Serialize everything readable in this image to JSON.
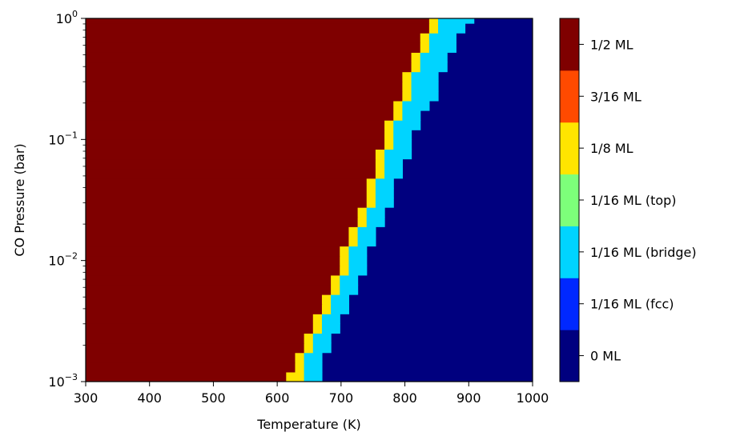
{
  "chart_data": {
    "type": "heatmap",
    "title": "",
    "xlabel": "Temperature (K)",
    "ylabel": "CO Pressure (bar)",
    "xlim": [
      300,
      1000
    ],
    "ylim": [
      0.001,
      1
    ],
    "yscale": "log",
    "x_cell_width_K": 14,
    "x_ticks": [
      "300",
      "400",
      "500",
      "600",
      "700",
      "800",
      "900",
      "1000"
    ],
    "y_ticks": [
      {
        "base": "10",
        "exp": "−3"
      },
      {
        "base": "10",
        "exp": "−2"
      },
      {
        "base": "10",
        "exp": "−1"
      },
      {
        "base": "10",
        "exp": "0"
      }
    ],
    "colorbar": {
      "placement": "right",
      "levels": [
        {
          "label": "0 ML",
          "color": "#00007f"
        },
        {
          "label": "1/16 ML (fcc)",
          "color": "#0028ff"
        },
        {
          "label": "1/16 ML (bridge)",
          "color": "#00d4ff"
        },
        {
          "label": "1/16 ML (top)",
          "color": "#7dff7a"
        },
        {
          "label": "1/8 ML",
          "color": "#ffe500"
        },
        {
          "label": "3/16 ML",
          "color": "#ff4a00"
        },
        {
          "label": "1/2 ML",
          "color": "#7f0000"
        }
      ]
    },
    "phase_rows": {
      "pressure_log10_edges": [
        -3.0,
        -2.92,
        -2.84,
        -2.76,
        -2.68,
        -2.6,
        -2.52,
        -2.44,
        -2.36,
        -2.28,
        -2.2,
        -2.12,
        -2.04,
        -1.96,
        -1.88,
        -1.8,
        -1.72,
        -1.64,
        -1.56,
        -1.48,
        -1.4,
        -1.32,
        -1.24,
        -1.16,
        -1.08,
        -1.0,
        -0.92,
        -0.84,
        -0.76,
        -0.68,
        -0.6,
        -0.52,
        -0.44,
        -0.36,
        -0.28,
        -0.2,
        -0.12,
        -0.04,
        0.04
      ],
      "half_ML_until_K": [
        614,
        628,
        628,
        642,
        642,
        656,
        656,
        670,
        670,
        684,
        684,
        698,
        698,
        698,
        712,
        712,
        726,
        726,
        740,
        740,
        740,
        754,
        754,
        754,
        768,
        768,
        768,
        782,
        782,
        796,
        796,
        796,
        810,
        810,
        824,
        824,
        838,
        838,
        852
      ],
      "eighth_ML_until_K": [
        642,
        642,
        642,
        656,
        656,
        670,
        670,
        684,
        684,
        698,
        698,
        712,
        712,
        712,
        726,
        726,
        740,
        740,
        754,
        754,
        754,
        768,
        768,
        768,
        782,
        782,
        782,
        796,
        796,
        810,
        810,
        810,
        824,
        824,
        838,
        838,
        852,
        852,
        866
      ],
      "bridge_ML_until_K": [
        670,
        670,
        670,
        684,
        684,
        698,
        698,
        712,
        712,
        726,
        726,
        740,
        740,
        740,
        754,
        754,
        768,
        768,
        782,
        782,
        782,
        796,
        796,
        810,
        810,
        810,
        824,
        824,
        838,
        852,
        852,
        852,
        866,
        866,
        880,
        880,
        894,
        908,
        936
      ]
    }
  }
}
